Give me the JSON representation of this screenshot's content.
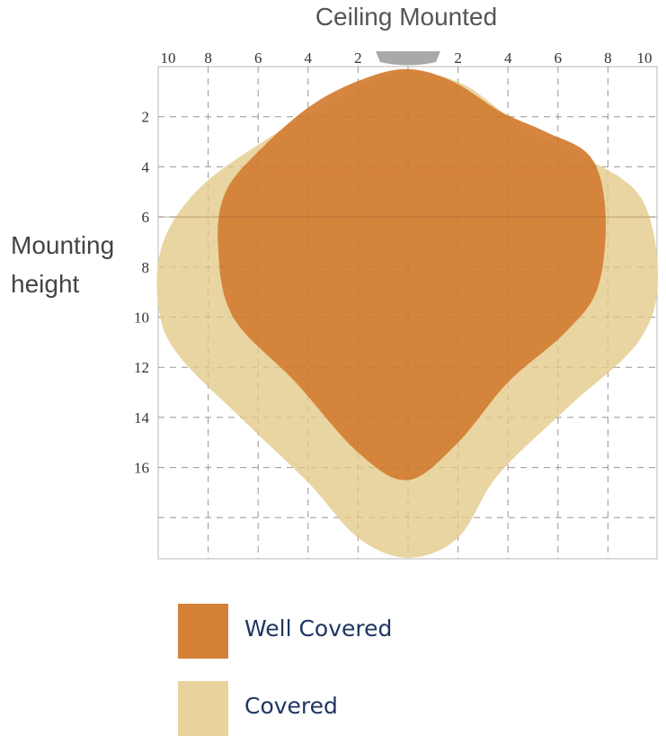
{
  "chart_data": {
    "type": "area",
    "title": "Ceiling Mounted",
    "ylabel": "Mounting height",
    "xlim": [
      -10,
      10
    ],
    "ylim": [
      0,
      20
    ],
    "x_ticks": [
      {
        "value": -10,
        "label": "10"
      },
      {
        "value": -8,
        "label": "8"
      },
      {
        "value": -6,
        "label": "6"
      },
      {
        "value": -4,
        "label": "4"
      },
      {
        "value": -2,
        "label": "2"
      },
      {
        "value": 2,
        "label": "2"
      },
      {
        "value": 4,
        "label": "4"
      },
      {
        "value": 6,
        "label": "6"
      },
      {
        "value": 8,
        "label": "8"
      },
      {
        "value": 10,
        "label": "10"
      }
    ],
    "y_ticks": [
      {
        "value": 2,
        "label": "2"
      },
      {
        "value": 4,
        "label": "4"
      },
      {
        "value": 6,
        "label": "6"
      },
      {
        "value": 8,
        "label": "8"
      },
      {
        "value": 10,
        "label": "10"
      },
      {
        "value": 12,
        "label": "12"
      },
      {
        "value": 14,
        "label": "14"
      },
      {
        "value": 16,
        "label": "16"
      }
    ],
    "grid": true,
    "series": [
      {
        "name": "Covered",
        "color": "#e8d39c",
        "points": [
          [
            0,
            0.2
          ],
          [
            2.2,
            0.7
          ],
          [
            4.7,
            2.5
          ],
          [
            6.8,
            3.5
          ],
          [
            9.3,
            5.2
          ],
          [
            10.0,
            8.5
          ],
          [
            9.2,
            11.0
          ],
          [
            6.4,
            13.6
          ],
          [
            3.6,
            16.3
          ],
          [
            2.0,
            18.8
          ],
          [
            0,
            19.6
          ],
          [
            -2.0,
            18.8
          ],
          [
            -4.0,
            16.6
          ],
          [
            -6.5,
            14.2
          ],
          [
            -9.2,
            11.5
          ],
          [
            -10.0,
            9.5
          ],
          [
            -9.8,
            7.0
          ],
          [
            -8.3,
            4.8
          ],
          [
            -5.5,
            2.8
          ],
          [
            -3.5,
            1.7
          ],
          [
            -1.5,
            0.6
          ]
        ]
      },
      {
        "name": "Well Covered",
        "color": "#d48036",
        "points": [
          [
            0,
            0.1
          ],
          [
            1.8,
            0.6
          ],
          [
            3.7,
            1.8
          ],
          [
            5.5,
            2.6
          ],
          [
            7.3,
            3.6
          ],
          [
            7.9,
            5.8
          ],
          [
            7.6,
            8.8
          ],
          [
            6.3,
            10.6
          ],
          [
            4.0,
            12.6
          ],
          [
            2.0,
            15.0
          ],
          [
            0,
            16.5
          ],
          [
            -2.0,
            15.4
          ],
          [
            -4.5,
            12.6
          ],
          [
            -7.0,
            10.0
          ],
          [
            -7.6,
            7.2
          ],
          [
            -7.3,
            5.0
          ],
          [
            -5.8,
            3.2
          ],
          [
            -3.8,
            1.5
          ],
          [
            -1.8,
            0.5
          ]
        ]
      }
    ],
    "legend": [
      {
        "label": "Well Covered",
        "color": "#d48036"
      },
      {
        "label": "Covered",
        "color": "#e8d39c"
      }
    ],
    "legend_position": "bottom"
  }
}
